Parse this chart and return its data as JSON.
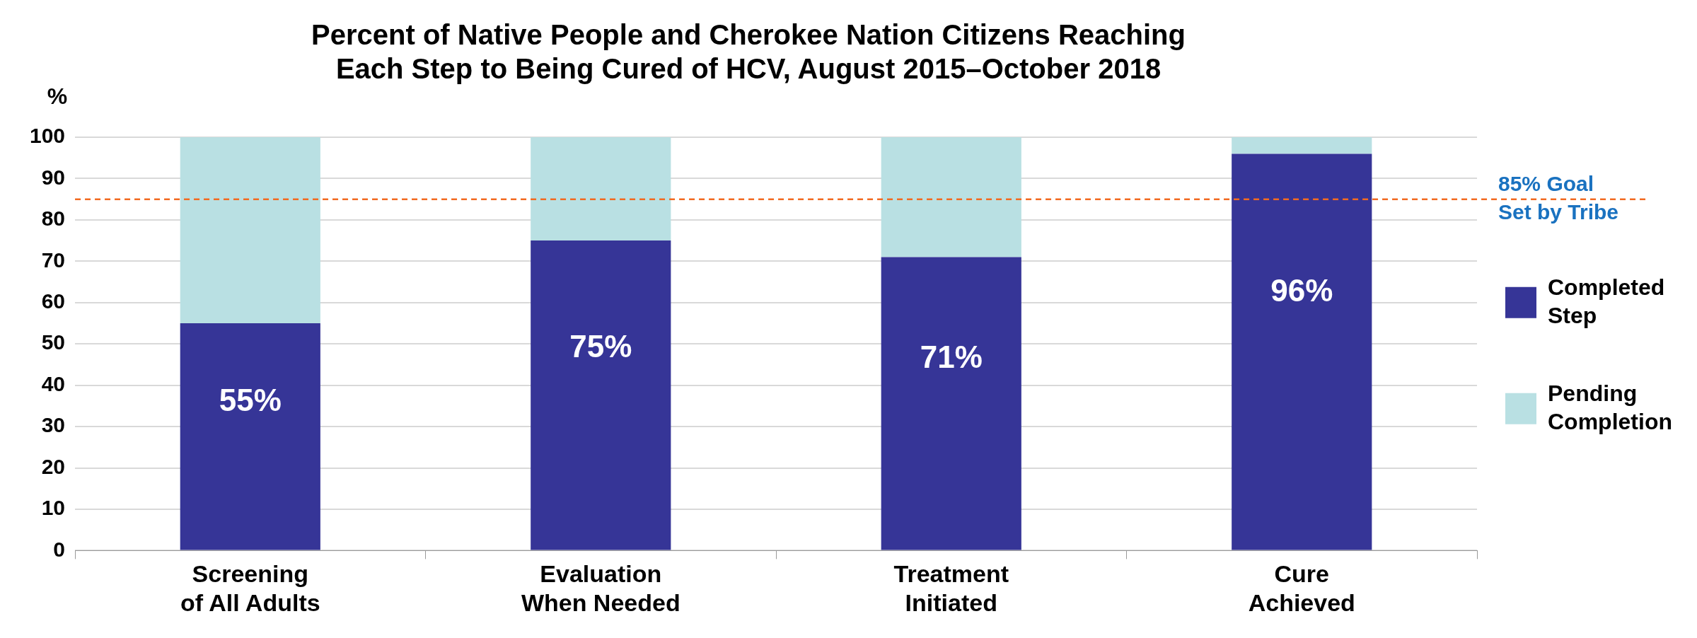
{
  "chart_data": {
    "type": "bar",
    "title": "Percent of Native People and Cherokee Nation Citizens Reaching Each Step to Being Cured of HCV, August 2015–October 2018",
    "ylabel": "%",
    "categories": [
      "Screening of All Adults",
      "Evaluation When Needed",
      "Treatment Initiated",
      "Cure Achieved"
    ],
    "stacked": true,
    "series": [
      {
        "name": "Completed Step",
        "color": "#363597",
        "values": [
          55,
          75,
          71,
          96
        ],
        "value_labels": [
          "55%",
          "75%",
          "71%",
          "96%"
        ]
      },
      {
        "name": "Pending Completion",
        "color": "#b9e0e3",
        "values": [
          45,
          25,
          29,
          4
        ]
      }
    ],
    "ylim": [
      0,
      100
    ],
    "yticks": [
      0,
      10,
      20,
      30,
      40,
      50,
      60,
      70,
      80,
      90,
      100
    ],
    "grid": "y",
    "legend": "right",
    "ref_lines": [
      {
        "axis": "y",
        "value": 85,
        "label": "85% Goal Set by Tribe",
        "color": "#f26a21",
        "line_style": "dashed"
      }
    ]
  }
}
